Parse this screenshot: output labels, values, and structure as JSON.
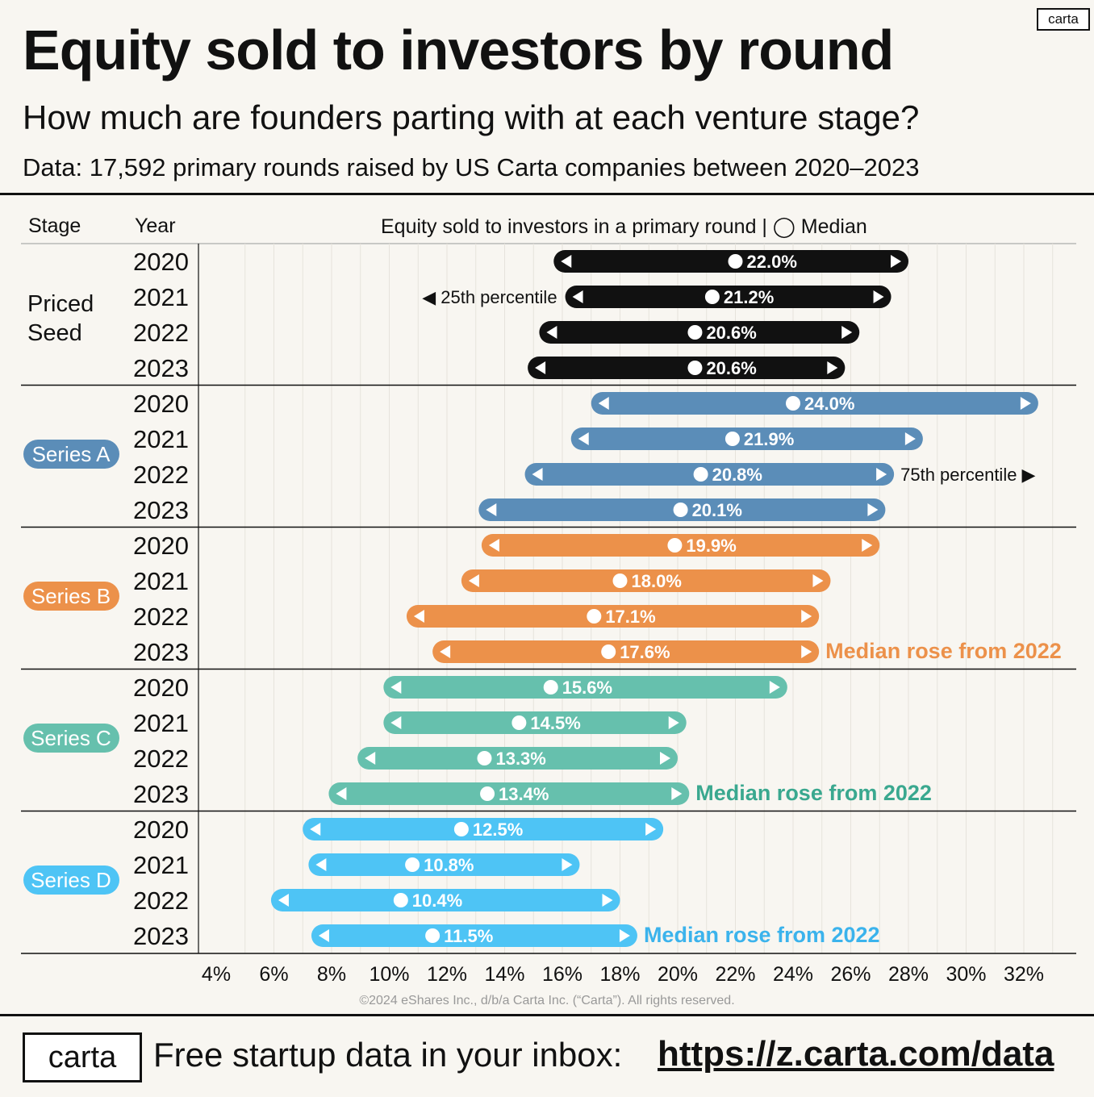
{
  "header": {
    "logo": "carta",
    "title": "Equity sold to investors by round",
    "subtitle": "How much are founders parting with at each venture stage?",
    "source": "Data: 17,592 primary rounds raised by US Carta companies between 2020–2023"
  },
  "table_header": {
    "stage": "Stage",
    "year": "Year",
    "main": "Equity sold to investors in a primary round | ◯ Median"
  },
  "chart_data": {
    "type": "range",
    "x_ticks": [
      4,
      6,
      8,
      10,
      12,
      14,
      16,
      18,
      20,
      22,
      24,
      26,
      28,
      30,
      32
    ],
    "x_tick_labels": [
      "4%",
      "6%",
      "8%",
      "10%",
      "12%",
      "14%",
      "16%",
      "18%",
      "20%",
      "22%",
      "24%",
      "26%",
      "28%",
      "30%",
      "32%"
    ],
    "xlim": [
      3.5,
      34
    ],
    "grid": true,
    "groups": [
      {
        "stage": "Priced Seed",
        "color": "#111111",
        "label_style": "text",
        "rows": [
          {
            "year": "2020",
            "p25": 15.7,
            "p75": 28.0,
            "median": 22.0,
            "median_label": "22.0%"
          },
          {
            "year": "2021",
            "p25": 16.1,
            "p75": 27.4,
            "median": 21.2,
            "median_label": "21.2%"
          },
          {
            "year": "2022",
            "p25": 15.2,
            "p75": 26.3,
            "median": 20.6,
            "median_label": "20.6%"
          },
          {
            "year": "2023",
            "p25": 14.8,
            "p75": 25.8,
            "median": 20.6,
            "median_label": "20.6%"
          }
        ]
      },
      {
        "stage": "Series A",
        "color": "#5b8db8",
        "label_style": "pill",
        "rows": [
          {
            "year": "2020",
            "p25": 17.0,
            "p75": 32.5,
            "median": 24.0,
            "median_label": "24.0%"
          },
          {
            "year": "2021",
            "p25": 16.3,
            "p75": 28.5,
            "median": 21.9,
            "median_label": "21.9%"
          },
          {
            "year": "2022",
            "p25": 14.7,
            "p75": 27.5,
            "median": 20.8,
            "median_label": "20.8%"
          },
          {
            "year": "2023",
            "p25": 13.1,
            "p75": 27.2,
            "median": 20.1,
            "median_label": "20.1%"
          }
        ]
      },
      {
        "stage": "Series B",
        "color": "#ec914a",
        "label_style": "pill",
        "rows": [
          {
            "year": "2020",
            "p25": 13.2,
            "p75": 27.0,
            "median": 19.9,
            "median_label": "19.9%"
          },
          {
            "year": "2021",
            "p25": 12.5,
            "p75": 25.3,
            "median": 18.0,
            "median_label": "18.0%"
          },
          {
            "year": "2022",
            "p25": 10.6,
            "p75": 24.9,
            "median": 17.1,
            "median_label": "17.1%"
          },
          {
            "year": "2023",
            "p25": 11.5,
            "p75": 24.9,
            "median": 17.6,
            "median_label": "17.6%"
          }
        ]
      },
      {
        "stage": "Series C",
        "color": "#66c0ad",
        "label_style": "pill",
        "rows": [
          {
            "year": "2020",
            "p25": 9.8,
            "p75": 23.8,
            "median": 15.6,
            "median_label": "15.6%"
          },
          {
            "year": "2021",
            "p25": 9.8,
            "p75": 20.3,
            "median": 14.5,
            "median_label": "14.5%"
          },
          {
            "year": "2022",
            "p25": 8.9,
            "p75": 20.0,
            "median": 13.3,
            "median_label": "13.3%"
          },
          {
            "year": "2023",
            "p25": 7.9,
            "p75": 20.4,
            "median": 13.4,
            "median_label": "13.4%"
          }
        ]
      },
      {
        "stage": "Series D",
        "color": "#4ec4f5",
        "label_style": "pill",
        "rows": [
          {
            "year": "2020",
            "p25": 7.0,
            "p75": 19.5,
            "median": 12.5,
            "median_label": "12.5%"
          },
          {
            "year": "2021",
            "p25": 7.2,
            "p75": 16.6,
            "median": 10.8,
            "median_label": "10.8%"
          },
          {
            "year": "2022",
            "p25": 5.9,
            "p75": 18.0,
            "median": 10.4,
            "median_label": "10.4%"
          },
          {
            "year": "2023",
            "p25": 7.3,
            "p75": 18.6,
            "median": 11.5,
            "median_label": "11.5%"
          }
        ]
      }
    ],
    "annotations": [
      {
        "group": 0,
        "row": 1,
        "side": "left",
        "text": "◀ 25th percentile",
        "color": "#111111",
        "bold": false
      },
      {
        "group": 1,
        "row": 2,
        "side": "right",
        "text": "75th percentile ▶",
        "color": "#111111",
        "bold": false
      },
      {
        "group": 2,
        "row": 3,
        "side": "right",
        "text": "Median rose from 2022",
        "color": "#ec914a",
        "bold": true
      },
      {
        "group": 3,
        "row": 3,
        "side": "right",
        "text": "Median rose from 2022",
        "color": "#3aa88f",
        "bold": true
      },
      {
        "group": 4,
        "row": 3,
        "side": "right",
        "text": "Median rose from 2022",
        "color": "#3bb3ec",
        "bold": true
      }
    ]
  },
  "footer": {
    "copyright": "©2024 eShares Inc., d/b/a Carta Inc. (“Carta”). All rights reserved.",
    "logo": "carta",
    "text": "Free startup data in your inbox:",
    "link": "https://z.carta.com/data"
  }
}
